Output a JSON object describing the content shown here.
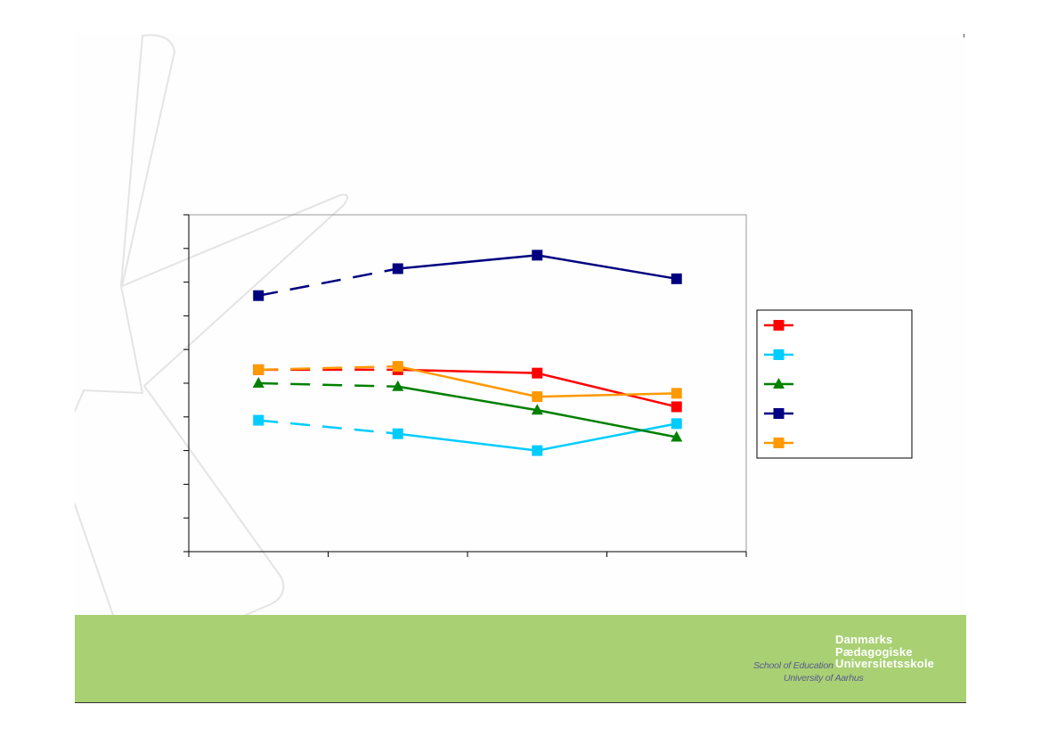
{
  "colors": {
    "slide_bg": "#fefefe",
    "band": "#a9d174",
    "decor_shape": "#e4e4e4",
    "series_red": "#ff0000",
    "series_cyan": "#00ccff",
    "series_green": "#008000",
    "series_navy": "#000080",
    "series_orange": "#ff9900"
  },
  "branding": {
    "line1": "Danmarks",
    "line2": "Pædagogiske",
    "line3": "Universitetsskole",
    "school": "School of Education",
    "university": "University of Aarhus"
  },
  "chart_data": {
    "type": "line",
    "title": "",
    "xlabel": "",
    "ylabel": "",
    "categories": [
      "",
      "",
      "",
      ""
    ],
    "ylim": [
      0,
      10
    ],
    "yticks": [
      0,
      1,
      2,
      3,
      4,
      5,
      6,
      7,
      8,
      9,
      10
    ],
    "grid": false,
    "legend_position": "right",
    "note": "",
    "series": [
      {
        "color": "#ff0000",
        "marker": "square",
        "values": [
          5.4,
          5.4,
          5.3,
          4.3
        ],
        "dashed_segments": [
          0
        ]
      },
      {
        "color": "#00ccff",
        "marker": "square",
        "values": [
          3.9,
          3.5,
          3.0,
          3.8
        ],
        "dashed_segments": [
          0
        ]
      },
      {
        "color": "#008000",
        "marker": "triangle",
        "values": [
          5.0,
          4.9,
          4.2,
          3.4
        ],
        "dashed_segments": [
          0
        ]
      },
      {
        "color": "#000080",
        "marker": "square",
        "values": [
          7.6,
          8.4,
          8.8,
          8.1
        ],
        "dashed_segments": [
          0
        ]
      },
      {
        "color": "#ff9900",
        "marker": "square",
        "values": [
          5.4,
          5.5,
          4.6,
          4.7
        ],
        "dashed_segments": [
          0
        ]
      }
    ]
  }
}
